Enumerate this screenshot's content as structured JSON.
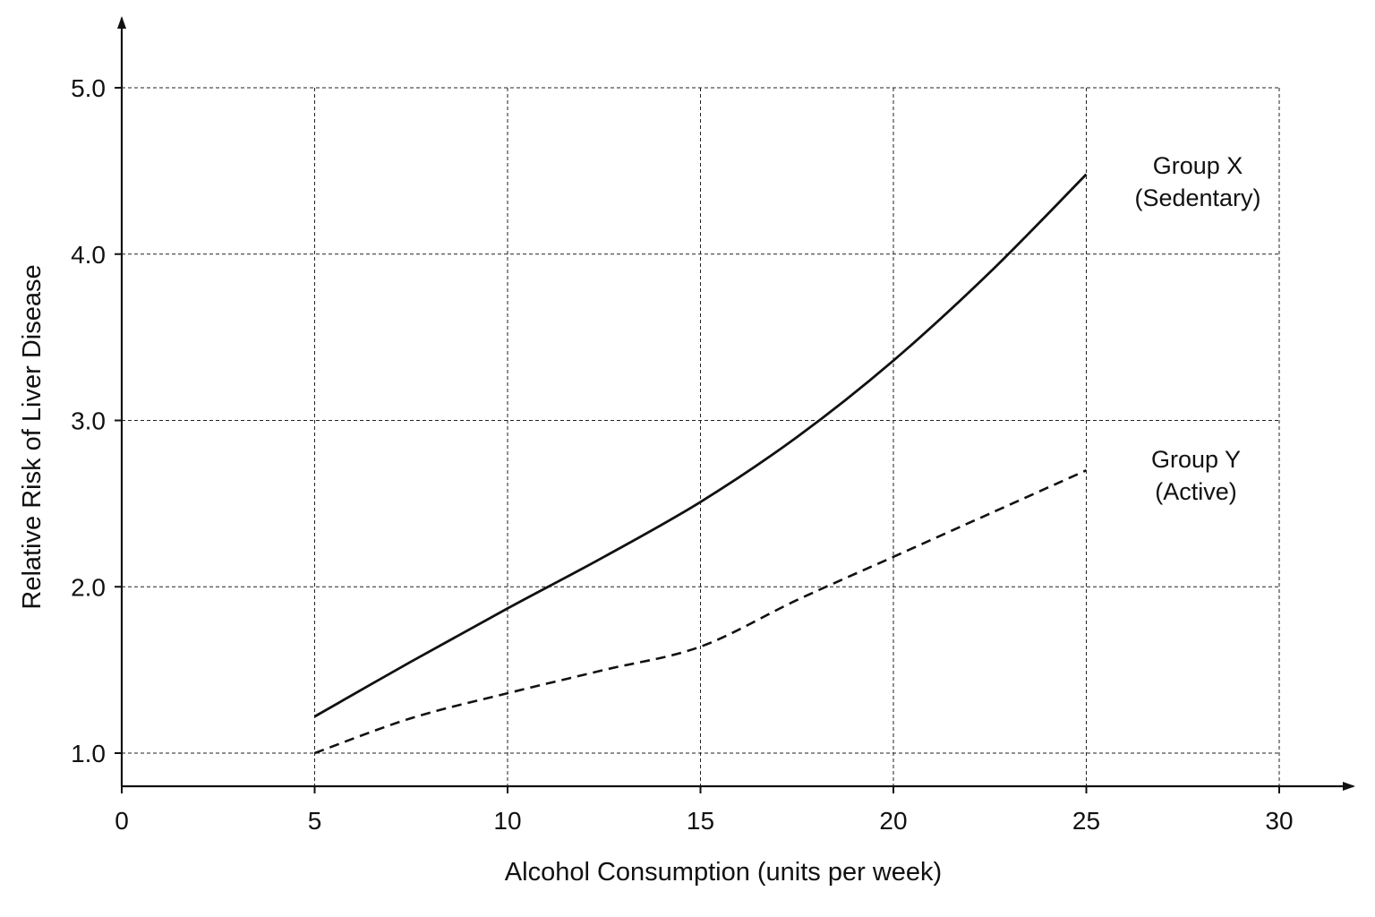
{
  "chart_data": {
    "type": "line",
    "title": "",
    "xlabel": "Alcohol Consumption (units per week)",
    "ylabel": "Relative Risk of Liver Disease",
    "xlim": [
      0,
      30
    ],
    "ylim": [
      0.8,
      5.0
    ],
    "x_ticks": [
      0,
      5,
      10,
      15,
      20,
      25,
      30
    ],
    "x_tick_labels": [
      "0",
      "5",
      "10",
      "15",
      "20",
      "25",
      "30"
    ],
    "y_ticks": [
      1.0,
      2.0,
      3.0,
      4.0,
      5.0
    ],
    "y_tick_labels": [
      "1.0",
      "2.0",
      "3.0",
      "4.0",
      "5.0"
    ],
    "grid": true,
    "legend": "inline labels at right end of lines",
    "series": [
      {
        "name": "Group X (Sedentary)",
        "label_lines": [
          "Group X",
          "(Sedentary)"
        ],
        "style": "solid",
        "color": "#111111",
        "x": [
          5,
          7.5,
          10,
          12.5,
          15,
          17.5,
          20,
          22.5,
          25
        ],
        "y": [
          1.22,
          1.55,
          1.87,
          2.18,
          2.51,
          2.9,
          3.36,
          3.89,
          4.48
        ]
      },
      {
        "name": "Group Y (Active)",
        "label_lines": [
          "Group Y",
          "(Active)"
        ],
        "style": "dashed",
        "color": "#111111",
        "x": [
          5,
          7.5,
          10,
          12.5,
          15,
          17.5,
          20,
          22.5,
          25
        ],
        "y": [
          1.0,
          1.21,
          1.36,
          1.5,
          1.64,
          1.92,
          2.18,
          2.44,
          2.7
        ]
      }
    ]
  }
}
